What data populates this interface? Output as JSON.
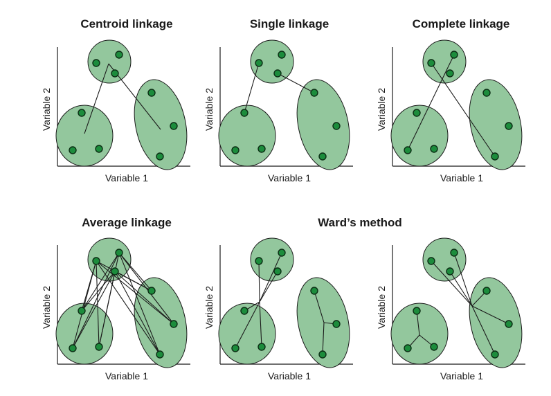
{
  "colors": {
    "cluster_fill": "#93c79d",
    "point_fill": "#1c8c3c",
    "line": "#1a1a1a"
  },
  "titles": {
    "centroid": "Centroid linkage",
    "single": "Single linkage",
    "complete": "Complete linkage",
    "average": "Average linkage",
    "ward": "Ward’s method"
  },
  "axes": {
    "x_label": "Variable 1",
    "y_label": "Variable 2"
  }
}
